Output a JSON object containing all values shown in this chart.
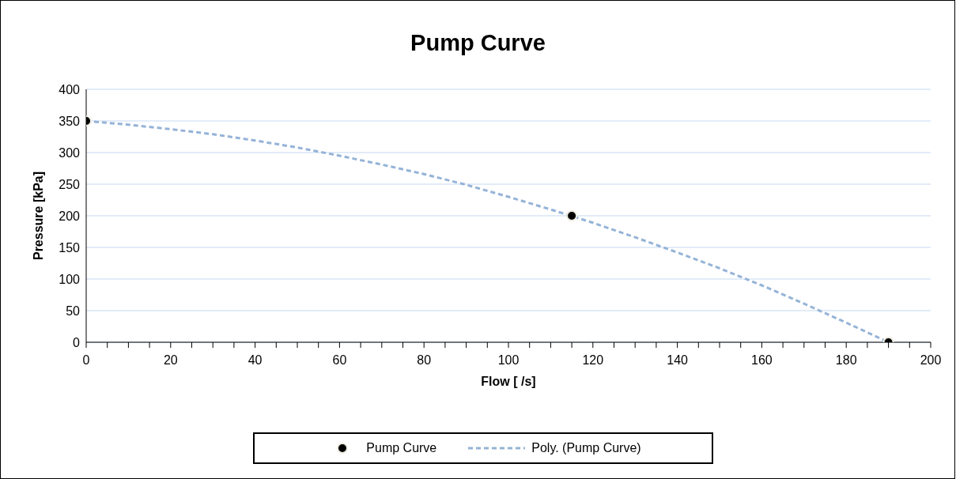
{
  "chart_data": {
    "type": "scatter",
    "title": "Pump Curve",
    "xlabel": "Flow [ /s]",
    "ylabel": "Pressure [kPa]",
    "xlim": [
      0,
      200
    ],
    "ylim": [
      0,
      400
    ],
    "xticks": [
      0,
      {
        "value": 5,
        "label": null
      },
      {
        "value": 10,
        "label": null
      },
      {
        "value": 15,
        "label": null
      },
      20,
      {
        "value": 25,
        "label": null
      },
      {
        "value": 30,
        "label": null
      },
      {
        "value": 35,
        "label": null
      },
      40,
      {
        "value": 45,
        "label": null
      },
      {
        "value": 50,
        "label": null
      },
      {
        "value": 55,
        "label": null
      },
      60,
      {
        "value": 65,
        "label": null
      },
      {
        "value": 70,
        "label": null
      },
      {
        "value": 75,
        "label": null
      },
      80,
      {
        "value": 85,
        "label": null
      },
      {
        "value": 90,
        "label": null
      },
      {
        "value": 95,
        "label": null
      },
      100,
      {
        "value": 105,
        "label": null
      },
      {
        "value": 110,
        "label": null
      },
      {
        "value": 115,
        "label": null
      },
      120,
      {
        "value": 125,
        "label": null
      },
      {
        "value": 130,
        "label": null
      },
      {
        "value": 135,
        "label": null
      },
      140,
      {
        "value": 145,
        "label": null
      },
      {
        "value": 150,
        "label": null
      },
      {
        "value": 155,
        "label": null
      },
      160,
      {
        "value": 165,
        "label": null
      },
      {
        "value": 170,
        "label": null
      },
      {
        "value": 175,
        "label": null
      },
      180,
      {
        "value": 185,
        "label": null
      },
      {
        "value": 190,
        "label": null
      },
      {
        "value": 195,
        "label": null
      },
      200
    ],
    "yticks": [
      0,
      50,
      100,
      150,
      200,
      250,
      300,
      350,
      400
    ],
    "grid": "y",
    "legend": "bottom",
    "series": [
      {
        "name": "Pump Curve",
        "color": "#000000",
        "marker": "circle",
        "x": [
          0,
          115,
          190
        ],
        "values": [
          350,
          200,
          0
        ]
      },
      {
        "name": "Poly. (Pump Curve)",
        "type": "line",
        "color": "#95b3d7",
        "marker": "none",
        "line_style": "dashed",
        "x": [
          0,
          10,
          20,
          30,
          40,
          50,
          60,
          70,
          80,
          90,
          100,
          110,
          120,
          130,
          140,
          150,
          160,
          170,
          180,
          190
        ],
        "values": [
          350,
          344,
          337,
          329,
          319,
          308,
          295,
          281,
          266,
          249,
          230,
          210,
          189,
          166,
          142,
          117,
          90,
          61,
          31,
          0
        ]
      }
    ]
  }
}
